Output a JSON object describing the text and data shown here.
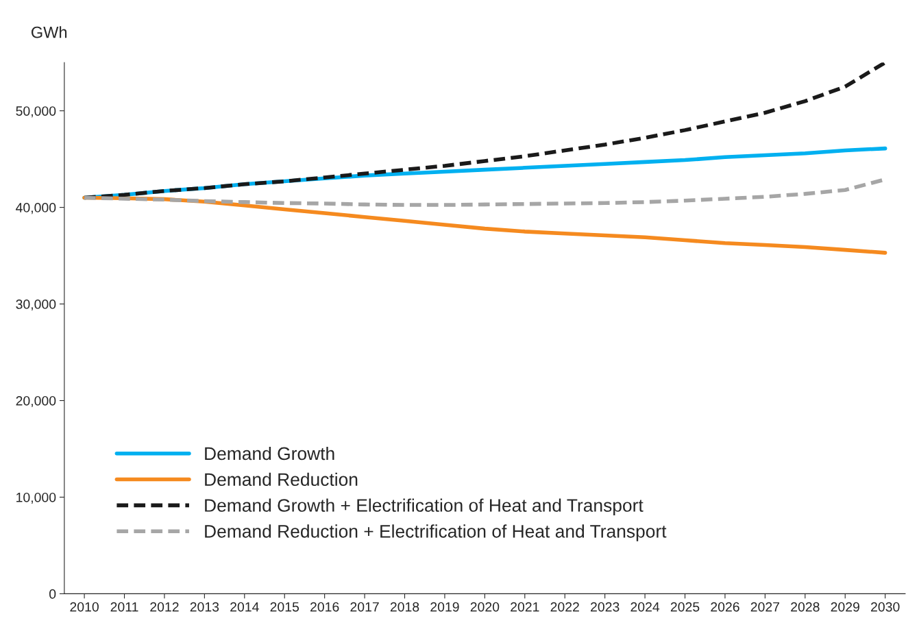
{
  "chart_data": {
    "type": "line",
    "ylabel": "GWh",
    "categories": [
      "2010",
      "2011",
      "2012",
      "2013",
      "2014",
      "2015",
      "2016",
      "2017",
      "2018",
      "2019",
      "2020",
      "2021",
      "2022",
      "2023",
      "2024",
      "2025",
      "2026",
      "2027",
      "2028",
      "2029",
      "2030"
    ],
    "ylim": [
      0,
      55000
    ],
    "yticks": [
      {
        "value": 0,
        "label": "0"
      },
      {
        "value": 10000,
        "label": "10,000"
      },
      {
        "value": 20000,
        "label": "20,000"
      },
      {
        "value": 30000,
        "label": "30,000"
      },
      {
        "value": 40000,
        "label": "40,000"
      },
      {
        "value": 50000,
        "label": "50,000"
      }
    ],
    "grid": false,
    "legend": "bottom left",
    "marker": "none",
    "series": [
      {
        "name": "Demand Growth",
        "color": "#00b0f0",
        "line_style": "solid",
        "values": [
          41000,
          41300,
          41700,
          42000,
          42400,
          42700,
          43000,
          43300,
          43500,
          43700,
          43900,
          44100,
          44300,
          44500,
          44700,
          44900,
          45200,
          45400,
          45600,
          45900,
          46100
        ]
      },
      {
        "name": "Demand Reduction",
        "color": "#f58a1f",
        "line_style": "solid",
        "values": [
          41000,
          40950,
          40850,
          40600,
          40200,
          39800,
          39400,
          39000,
          38600,
          38200,
          37800,
          37500,
          37300,
          37100,
          36900,
          36600,
          36300,
          36100,
          35900,
          35600,
          35300
        ]
      },
      {
        "name": "Demand Growth + Electrification of Heat and Transport",
        "color": "#1a1a1a",
        "line_style": "dashed",
        "values": [
          41000,
          41300,
          41700,
          42000,
          42400,
          42700,
          43100,
          43500,
          43900,
          44300,
          44800,
          45300,
          45900,
          46500,
          47200,
          48000,
          48900,
          49800,
          51000,
          52500,
          55000
        ]
      },
      {
        "name": "Demand Reduction + Electrification of Heat and Transport",
        "color": "#a6a6a6",
        "line_style": "dashed",
        "values": [
          41000,
          40900,
          40800,
          40650,
          40550,
          40450,
          40400,
          40300,
          40250,
          40250,
          40300,
          40350,
          40400,
          40450,
          40550,
          40700,
          40900,
          41100,
          41400,
          41800,
          42900
        ]
      }
    ]
  }
}
